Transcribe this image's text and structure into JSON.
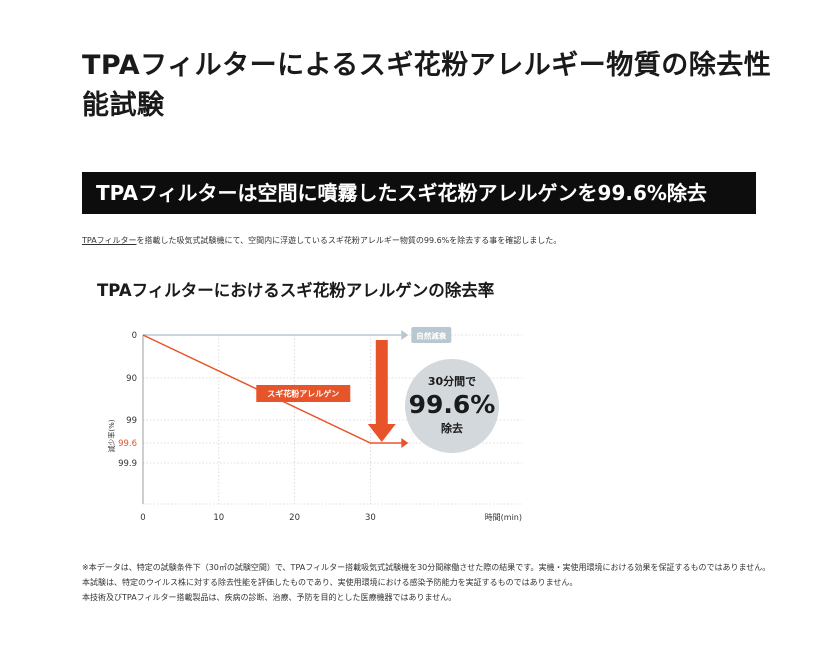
{
  "page_title": "TPAフィルターによるスギ花粉アレルギー物質の除去性能試験",
  "banner": "TPAフィルターは空間に噴霧したスギ花粉アレルゲンを99.6%除去",
  "intro": {
    "link_text": "TPAフィルター",
    "rest": "を搭載した吸気式試験機にて、空間内に浮遊しているスギ花粉アレルギー物質の99.6%を除去する事を確認しました。"
  },
  "colors": {
    "accent": "#e8542a",
    "natural": "#b9c7d0",
    "banner_bg": "#0d0d0d",
    "grid": "#d5d5d5"
  },
  "chart_data": {
    "type": "line",
    "title": "TPAフィルターにおけるスギ花粉アレルゲンの除去率",
    "xlabel": "時間(min)",
    "ylabel": "減少率(%)",
    "x_ticks": [
      0,
      10,
      20,
      30
    ],
    "xlim": [
      0,
      50
    ],
    "y_ticks": [
      "0",
      "90",
      "99",
      "99.6",
      "99.9"
    ],
    "highlight_tick": "99.6",
    "series": [
      {
        "name": "自然減衰",
        "x": [
          0,
          35
        ],
        "y": [
          "0",
          "0"
        ]
      },
      {
        "name": "スギ花粉アレルゲン",
        "x": [
          0,
          30,
          35
        ],
        "y": [
          "0",
          "99.6",
          "99.6"
        ]
      }
    ],
    "annotation": {
      "line1": "30分間で",
      "value": "99.6%",
      "line2": "除去"
    },
    "grid": true
  },
  "notes": [
    "※本データは、特定の試験条件下（30㎥の試験空間）で、TPAフィルター搭載吸気式試験機を30分間稼働させた際の結果です。実機・実使用環境における効果を保証するものではありません。",
    "本試験は、特定のウイルス株に対する除去性能を評価したものであり、実使用環境における感染予防能力を実証するものではありません。",
    "本技術及びTPAフィルター搭載製品は、疾病の診断、治療、予防を目的とした医療機器ではありません。"
  ]
}
